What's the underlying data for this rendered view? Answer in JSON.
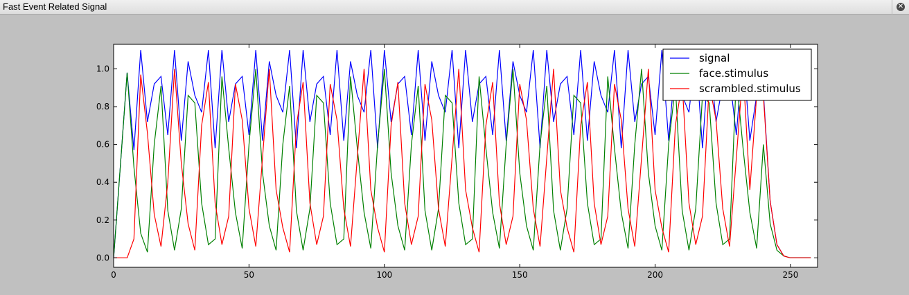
{
  "window": {
    "title": "Fast Event Related Signal"
  },
  "icons": {
    "close": "close-icon"
  },
  "colors": {
    "signal": "#0000ff",
    "face": "#008000",
    "scrambled": "#ff0000",
    "background": "#c0c0c0"
  },
  "chart_data": {
    "type": "line",
    "title": "",
    "xlabel": "",
    "ylabel": "",
    "xlim": [
      0,
      260
    ],
    "ylim": [
      -0.05,
      1.13
    ],
    "xticks": [
      "0",
      "50",
      "100",
      "150",
      "200",
      "250"
    ],
    "yticks": [
      "0.0",
      "0.2",
      "0.4",
      "0.6",
      "0.8",
      "1.0"
    ],
    "grid": false,
    "legend_position": "top-right",
    "x_start": 0,
    "x_step": 2.5,
    "series": [
      {
        "name": "signal",
        "color": "#0000ff",
        "values": [
          0.0,
          0.49,
          0.98,
          0.57,
          1.1,
          0.72,
          0.92,
          0.96,
          0.65,
          1.1,
          0.62,
          1.04,
          0.86,
          0.77,
          1.1,
          0.58,
          1.1,
          0.72,
          0.92,
          0.96,
          0.65,
          1.1,
          0.62,
          1.04,
          0.86,
          0.77,
          1.1,
          0.58,
          1.1,
          0.72,
          0.92,
          0.96,
          0.65,
          1.1,
          0.62,
          1.04,
          0.86,
          0.77,
          1.1,
          0.58,
          1.1,
          0.72,
          0.92,
          0.96,
          0.65,
          1.1,
          0.62,
          1.04,
          0.86,
          0.77,
          1.1,
          0.58,
          1.1,
          0.72,
          0.92,
          0.96,
          0.65,
          1.1,
          0.62,
          1.04,
          0.86,
          0.77,
          1.1,
          0.58,
          1.1,
          0.72,
          0.92,
          0.96,
          0.65,
          1.1,
          0.62,
          1.04,
          0.86,
          0.77,
          1.1,
          0.58,
          1.1,
          0.72,
          0.92,
          0.96,
          0.65,
          1.1,
          0.62,
          1.04,
          0.86,
          0.77,
          1.1,
          0.58,
          1.1,
          0.72,
          0.92,
          0.96,
          0.65,
          1.1,
          0.62,
          0.86,
          0.88,
          0.3,
          0.07,
          0.01,
          0.0,
          0.0,
          0.0,
          0.0
        ]
      },
      {
        "name": "face.stimulus",
        "color": "#008000",
        "values": [
          0.0,
          0.49,
          0.98,
          0.48,
          0.13,
          0.03,
          0.6,
          0.91,
          0.25,
          0.04,
          0.26,
          0.86,
          0.82,
          0.29,
          0.07,
          0.1,
          0.96,
          0.58,
          0.24,
          0.05,
          0.6,
          1.0,
          0.45,
          0.17,
          0.04,
          0.6,
          0.91,
          0.25,
          0.04,
          0.26,
          0.86,
          0.82,
          0.29,
          0.07,
          0.1,
          0.96,
          0.58,
          0.24,
          0.05,
          0.6,
          1.0,
          0.45,
          0.17,
          0.04,
          0.6,
          0.91,
          0.25,
          0.04,
          0.26,
          0.86,
          0.82,
          0.29,
          0.07,
          0.1,
          0.96,
          0.58,
          0.24,
          0.05,
          0.6,
          1.0,
          0.45,
          0.17,
          0.04,
          0.6,
          0.91,
          0.25,
          0.04,
          0.26,
          0.86,
          0.82,
          0.29,
          0.07,
          0.1,
          0.96,
          0.58,
          0.24,
          0.05,
          0.6,
          1.0,
          0.45,
          0.17,
          0.04,
          0.6,
          0.91,
          0.25,
          0.04,
          0.26,
          0.86,
          0.82,
          0.29,
          0.07,
          0.1,
          0.96,
          0.58,
          0.24,
          0.05,
          0.6,
          0.18,
          0.04,
          0.01,
          0.0,
          0.0,
          0.0,
          0.0
        ]
      },
      {
        "name": "scrambled.stimulus",
        "color": "#ff0000",
        "values": [
          0.0,
          0.0,
          0.0,
          0.1,
          0.97,
          0.66,
          0.23,
          0.06,
          0.4,
          1.0,
          0.5,
          0.18,
          0.04,
          0.7,
          0.93,
          0.29,
          0.07,
          0.22,
          0.92,
          0.73,
          0.26,
          0.06,
          0.53,
          1.0,
          0.36,
          0.16,
          0.03,
          0.7,
          0.93,
          0.29,
          0.07,
          0.22,
          0.92,
          0.73,
          0.26,
          0.06,
          0.53,
          1.0,
          0.36,
          0.16,
          0.03,
          0.7,
          0.93,
          0.29,
          0.07,
          0.22,
          0.92,
          0.73,
          0.26,
          0.06,
          0.53,
          1.0,
          0.36,
          0.16,
          0.03,
          0.7,
          0.93,
          0.29,
          0.07,
          0.22,
          0.92,
          0.73,
          0.26,
          0.06,
          0.53,
          1.0,
          0.36,
          0.16,
          0.03,
          0.7,
          0.93,
          0.29,
          0.07,
          0.22,
          0.92,
          0.73,
          0.26,
          0.06,
          0.53,
          1.0,
          0.36,
          0.16,
          0.03,
          0.7,
          0.93,
          0.29,
          0.07,
          0.22,
          0.92,
          0.73,
          0.26,
          0.06,
          0.53,
          1.0,
          0.36,
          0.86,
          0.86,
          0.3,
          0.07,
          0.01,
          0.0,
          0.0,
          0.0,
          0.0
        ]
      }
    ]
  }
}
